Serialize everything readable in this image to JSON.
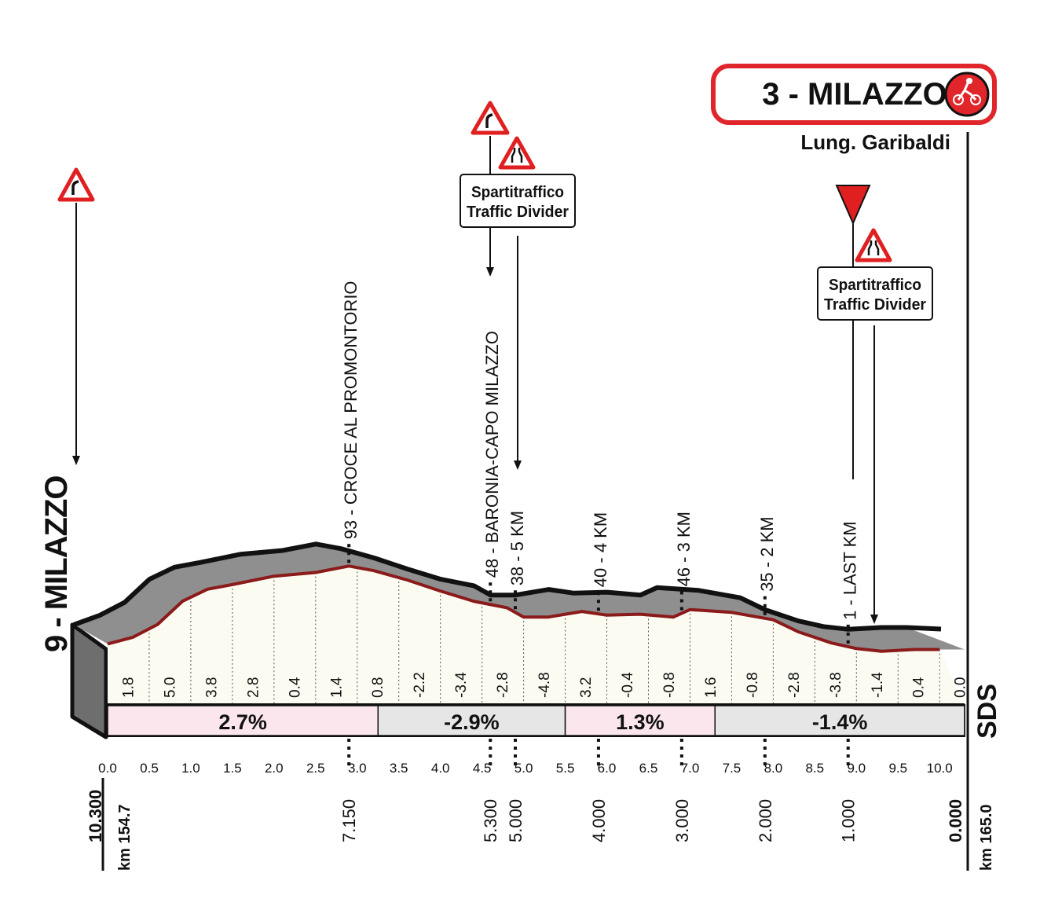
{
  "finish": {
    "label": "3 - MILAZZO",
    "street": "Lung. Garibaldi",
    "icon": "cyclist-icon"
  },
  "start": {
    "label": "9 - MILAZZO"
  },
  "traffic_divider_label_1": "Spartitraffico",
  "traffic_divider_label_2": "Traffic Divider",
  "warning_icons": [
    "curve-left-icon",
    "curve-right-icon",
    "road-narrows-icon",
    "flamme-rouge-icon"
  ],
  "colors": {
    "profile_fill": "#8f8f8f",
    "road_line": "#8b1a1a",
    "warning_red": "#e02020",
    "positive_gradient": "#fbe6ee",
    "negative_gradient": "#e6e6e6",
    "sign_red": "#e0262b"
  },
  "chart_data": {
    "type": "area",
    "title": "",
    "xlabel": "",
    "ylabel": "",
    "x_range": [
      0,
      10.3
    ],
    "x_ticks": [
      "0.0",
      "0.5",
      "1.0",
      "1.5",
      "2.0",
      "2.5",
      "3.0",
      "3.5",
      "4.0",
      "4.5",
      "5.0",
      "5.5",
      "6.0",
      "6.5",
      "7.0",
      "7.5",
      "8.0",
      "8.5",
      "9.0",
      "9.5",
      "10.0"
    ],
    "elevation": [
      {
        "x": 0.0,
        "y": 9
      },
      {
        "x": 0.3,
        "y": 16
      },
      {
        "x": 0.6,
        "y": 30
      },
      {
        "x": 0.9,
        "y": 55
      },
      {
        "x": 1.2,
        "y": 68
      },
      {
        "x": 1.5,
        "y": 73
      },
      {
        "x": 2.0,
        "y": 82
      },
      {
        "x": 2.5,
        "y": 86
      },
      {
        "x": 2.9,
        "y": 93
      },
      {
        "x": 3.2,
        "y": 88
      },
      {
        "x": 3.6,
        "y": 78
      },
      {
        "x": 4.0,
        "y": 66
      },
      {
        "x": 4.4,
        "y": 55
      },
      {
        "x": 4.8,
        "y": 48
      },
      {
        "x": 5.0,
        "y": 38
      },
      {
        "x": 5.3,
        "y": 38
      },
      {
        "x": 5.7,
        "y": 44
      },
      {
        "x": 6.0,
        "y": 40
      },
      {
        "x": 6.4,
        "y": 41
      },
      {
        "x": 6.8,
        "y": 38
      },
      {
        "x": 7.0,
        "y": 46
      },
      {
        "x": 7.5,
        "y": 43
      },
      {
        "x": 8.0,
        "y": 35
      },
      {
        "x": 8.3,
        "y": 22
      },
      {
        "x": 8.7,
        "y": 10
      },
      {
        "x": 9.0,
        "y": 4
      },
      {
        "x": 9.3,
        "y": 1
      },
      {
        "x": 9.7,
        "y": 3
      },
      {
        "x": 10.0,
        "y": 3
      }
    ],
    "points": [
      {
        "label": "93 - CROCE AL PROMONTORIO",
        "km_to_go": "7.150",
        "x": 2.9
      },
      {
        "label": "48 - BARONIA-CAPO MILAZZO",
        "km_to_go": "5.300",
        "x": 4.6
      },
      {
        "label": "38 - 5 KM",
        "km_to_go": "5.000",
        "x": 4.9
      },
      {
        "label": "40 - 4 KM",
        "km_to_go": "4.000",
        "x": 5.9
      },
      {
        "label": "46 - 3 KM",
        "km_to_go": "3.000",
        "x": 6.9
      },
      {
        "label": "35 - 2 KM",
        "km_to_go": "2.000",
        "x": 7.9
      },
      {
        "label": "1 - LAST KM",
        "km_to_go": "1.000",
        "x": 8.9
      }
    ],
    "segment_gradients": [
      "1.8",
      "5.0",
      "3.8",
      "2.8",
      "0.4",
      "1.4",
      "0.8",
      "-2.2",
      "-3.4",
      "-2.8",
      "-4.8",
      "3.2",
      "-0.4",
      "-0.8",
      "1.6",
      "-0.8",
      "-2.8",
      "-3.8",
      "-1.4",
      "0.4",
      "0.0"
    ],
    "section_gradients": [
      {
        "label": "2.7%",
        "from": 0.0,
        "to": 3.25
      },
      {
        "label": "-2.9%",
        "from": 3.25,
        "to": 5.5
      },
      {
        "label": "1.3%",
        "from": 5.5,
        "to": 7.3
      },
      {
        "label": "-1.4%",
        "from": 7.3,
        "to": 10.3
      }
    ],
    "km_start": "km 154.7",
    "km_finish": "km 165.0",
    "to_go_start": "10.300",
    "to_go_finish": "0.000"
  },
  "sponsor_logo_text": "SDS"
}
